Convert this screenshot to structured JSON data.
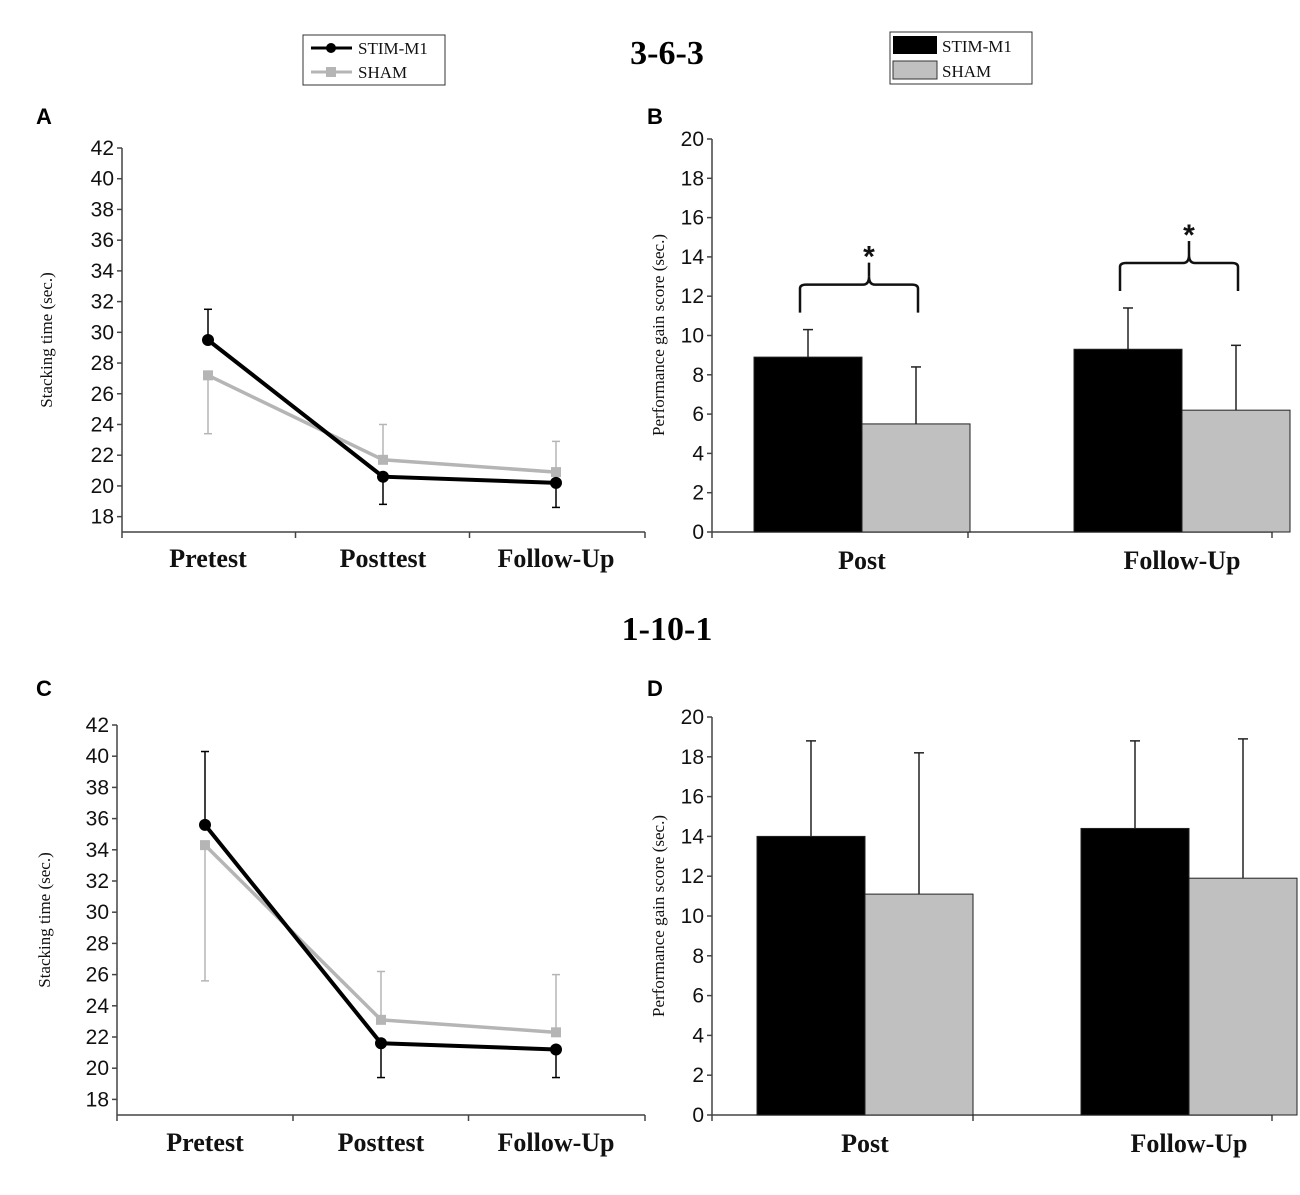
{
  "titles": {
    "top": "3-6-3",
    "bottom": "1-10-1"
  },
  "panel_letters": [
    "A",
    "B",
    "C",
    "D"
  ],
  "legends": {
    "line": {
      "items": [
        {
          "label": "STIM-M1",
          "color": "#000000"
        },
        {
          "label": "SHAM",
          "color": "#b5b5b5"
        }
      ]
    },
    "bar": {
      "items": [
        {
          "label": "STIM-M1",
          "color": "#000000"
        },
        {
          "label": "SHAM",
          "color": "#c0c0c0"
        }
      ]
    }
  },
  "chart_data": [
    {
      "panel": "A",
      "type": "line",
      "title": "3-6-3",
      "xlabel": "",
      "ylabel": "Stacking time (sec.)",
      "categories": [
        "Pretest",
        "Posttest",
        "Follow-Up"
      ],
      "ylim": [
        17,
        42
      ],
      "yticks": [
        18,
        20,
        22,
        24,
        26,
        28,
        30,
        32,
        34,
        36,
        38,
        40,
        42
      ],
      "series": [
        {
          "name": "STIM-M1",
          "color": "#000000",
          "values": [
            29.5,
            20.6,
            20.2
          ],
          "err_low": [
            0,
            1.8,
            1.6
          ],
          "err_high": [
            2.0,
            0,
            0
          ]
        },
        {
          "name": "SHAM",
          "color": "#b5b5b5",
          "values": [
            27.2,
            21.7,
            20.9
          ],
          "err_low": [
            3.8,
            0,
            0
          ],
          "err_high": [
            0,
            2.3,
            2.0
          ]
        }
      ]
    },
    {
      "panel": "B",
      "type": "bar",
      "title": "3-6-3",
      "xlabel": "",
      "ylabel": "Performance gain score (sec.)",
      "categories": [
        "Post",
        "Follow-Up"
      ],
      "ylim": [
        0,
        20
      ],
      "yticks": [
        0,
        2,
        4,
        6,
        8,
        10,
        12,
        14,
        16,
        18,
        20
      ],
      "series": [
        {
          "name": "STIM-M1",
          "color": "#000000",
          "values": [
            8.9,
            9.3
          ],
          "err_high": [
            1.4,
            2.1
          ]
        },
        {
          "name": "SHAM",
          "color": "#c0c0c0",
          "values": [
            5.5,
            6.2
          ],
          "err_high": [
            2.9,
            3.3
          ]
        }
      ],
      "annotations": [
        {
          "category": "Post",
          "text": "*",
          "y": 13.3
        },
        {
          "category": "Follow-Up",
          "text": "*",
          "y": 14.4
        }
      ]
    },
    {
      "panel": "C",
      "type": "line",
      "title": "1-10-1",
      "xlabel": "",
      "ylabel": "Stacking time (sec.)",
      "categories": [
        "Pretest",
        "Posttest",
        "Follow-Up"
      ],
      "ylim": [
        17,
        42
      ],
      "yticks": [
        18,
        20,
        22,
        24,
        26,
        28,
        30,
        32,
        34,
        36,
        38,
        40,
        42
      ],
      "series": [
        {
          "name": "STIM-M1",
          "color": "#000000",
          "values": [
            35.6,
            21.6,
            21.2
          ],
          "err_low": [
            0,
            2.2,
            1.8
          ],
          "err_high": [
            4.7,
            0,
            0
          ]
        },
        {
          "name": "SHAM",
          "color": "#b5b5b5",
          "values": [
            34.3,
            23.1,
            22.3
          ],
          "err_low": [
            8.7,
            0,
            0
          ],
          "err_high": [
            0,
            3.1,
            3.7
          ]
        }
      ]
    },
    {
      "panel": "D",
      "type": "bar",
      "title": "1-10-1",
      "xlabel": "",
      "ylabel": "Performance gain score (sec.)",
      "categories": [
        "Post",
        "Follow-Up"
      ],
      "ylim": [
        0,
        20
      ],
      "yticks": [
        0,
        2,
        4,
        6,
        8,
        10,
        12,
        14,
        16,
        18,
        20
      ],
      "series": [
        {
          "name": "STIM-M1",
          "color": "#000000",
          "values": [
            14.0,
            14.4
          ],
          "err_high": [
            4.8,
            4.4
          ]
        },
        {
          "name": "SHAM",
          "color": "#c0c0c0",
          "values": [
            11.1,
            11.9
          ],
          "err_high": [
            7.1,
            7.0
          ]
        }
      ],
      "annotations": []
    }
  ]
}
